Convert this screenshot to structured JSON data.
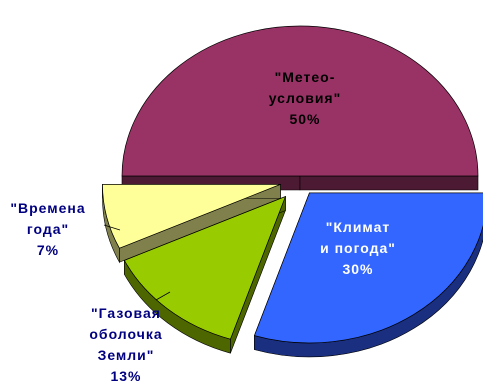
{
  "chart_data": {
    "type": "pie",
    "style": "3d-exploded",
    "slices": [
      {
        "label_lines": [
          "\"Метео-",
          "условия\""
        ],
        "value": 50,
        "value_text": "50%",
        "color": "#993366",
        "side_color": "#4d1a33",
        "label_color": "#000000"
      },
      {
        "label_lines": [
          "\"Климат",
          "и погода\""
        ],
        "value": 30,
        "value_text": "30%",
        "color": "#3366ff",
        "side_color": "#1a2f80",
        "label_color": "#ffffff"
      },
      {
        "label_lines": [
          "\"Газовая",
          "оболочка",
          "Земли\""
        ],
        "value": 13,
        "value_text": "13%",
        "color": "#99cc00",
        "side_color": "#4d6600",
        "label_color": "#000080"
      },
      {
        "label_lines": [
          "\"Времена",
          "года\""
        ],
        "value": 7,
        "value_text": "7%",
        "color": "#ffff99",
        "side_color": "#80804d",
        "label_color": "#000080"
      }
    ]
  }
}
